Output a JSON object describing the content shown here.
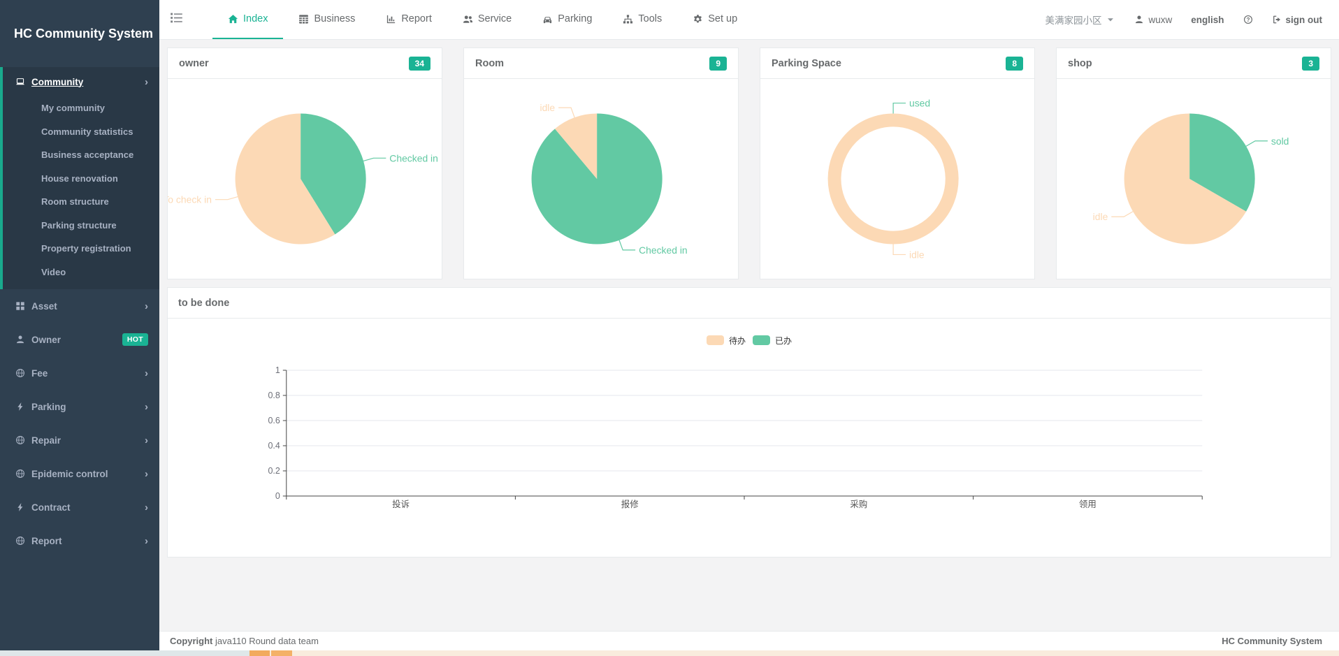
{
  "app": {
    "title": "HC Community System",
    "footer_copyright_label": "Copyright",
    "footer_copyright_text": "java110 Round data team",
    "footer_brand": "HC Community System"
  },
  "topbar": {
    "tabs": [
      {
        "label": "Index",
        "icon": "home",
        "active": true
      },
      {
        "label": "Business",
        "icon": "table",
        "active": false
      },
      {
        "label": "Report",
        "icon": "chart",
        "active": false
      },
      {
        "label": "Service",
        "icon": "users",
        "active": false
      },
      {
        "label": "Parking",
        "icon": "car",
        "active": false
      },
      {
        "label": "Tools",
        "icon": "sitemap",
        "active": false
      },
      {
        "label": "Set up",
        "icon": "gear",
        "active": false
      }
    ],
    "community": "美满家园小区",
    "user": "wuxw",
    "language": "english",
    "signout_label": "sign out"
  },
  "sidebar": {
    "logo": "HC Community System",
    "sections": [
      {
        "label": "Community",
        "icon": "laptop",
        "active": true,
        "chevron": true,
        "children": [
          "My community",
          "Community statistics",
          "Business acceptance",
          "House renovation",
          "Room structure",
          "Parking structure",
          "Property registration",
          "Video"
        ]
      },
      {
        "label": "Asset",
        "icon": "grid",
        "chevron": true
      },
      {
        "label": "Owner",
        "icon": "user",
        "badge": "HOT"
      },
      {
        "label": "Fee",
        "icon": "globe",
        "chevron": true
      },
      {
        "label": "Parking",
        "icon": "bolt",
        "chevron": true
      },
      {
        "label": "Repair",
        "icon": "globe",
        "chevron": true
      },
      {
        "label": "Epidemic control",
        "icon": "globe",
        "chevron": true
      },
      {
        "label": "Contract",
        "icon": "bolt",
        "chevron": true
      },
      {
        "label": "Report",
        "icon": "globe",
        "chevron": true
      }
    ]
  },
  "cards": [
    {
      "title": "owner",
      "badge": "34"
    },
    {
      "title": "Room",
      "badge": "9"
    },
    {
      "title": "Parking Space",
      "badge": "8"
    },
    {
      "title": "shop",
      "badge": "3"
    }
  ],
  "todo_panel": {
    "title": "to be done"
  },
  "colors": {
    "accent": "#1ab394",
    "sidebar_bg": "#2f4050",
    "sidebar_active_bg": "#293846",
    "sidebar_active_border": "#19aa8d",
    "pie_green": "#62c9a3",
    "pie_peach": "#fcd9b5",
    "axis": "#464646",
    "gridline": "#e4e7ed"
  },
  "chart_data": [
    {
      "type": "pie",
      "title": "owner",
      "total": 34,
      "items": [
        {
          "name": "Checked in",
          "value": 14,
          "color": "#62c9a3"
        },
        {
          "name": "To check in",
          "value": 20,
          "color": "#fcd9b5"
        }
      ]
    },
    {
      "type": "pie",
      "title": "Room",
      "total": 9,
      "items": [
        {
          "name": "Checked in",
          "value": 8,
          "color": "#62c9a3"
        },
        {
          "name": "idle",
          "value": 1,
          "color": "#fcd9b5"
        }
      ]
    },
    {
      "type": "donut",
      "title": "Parking Space",
      "total": 8,
      "items": [
        {
          "name": "used",
          "value": 0,
          "color": "#62c9a3"
        },
        {
          "name": "idle",
          "value": 8,
          "color": "#fcd9b5"
        }
      ]
    },
    {
      "type": "pie",
      "title": "shop",
      "total": 3,
      "items": [
        {
          "name": "sold",
          "value": 1,
          "color": "#62c9a3"
        },
        {
          "name": "idle",
          "value": 2,
          "color": "#fcd9b5"
        }
      ]
    },
    {
      "type": "bar",
      "title": "to be done",
      "categories": [
        "投诉",
        "报修",
        "采购",
        "领用"
      ],
      "series": [
        {
          "name": "待办",
          "values": [
            0,
            0,
            0,
            0
          ],
          "color": "#fcd9b5"
        },
        {
          "name": "已办",
          "values": [
            0,
            0,
            0,
            0
          ],
          "color": "#62c9a3"
        }
      ],
      "ylim": [
        0,
        1
      ],
      "yticks": [
        0,
        0.2,
        0.4,
        0.6,
        0.8,
        1
      ],
      "legend_position": "top-center",
      "grid": true
    }
  ]
}
